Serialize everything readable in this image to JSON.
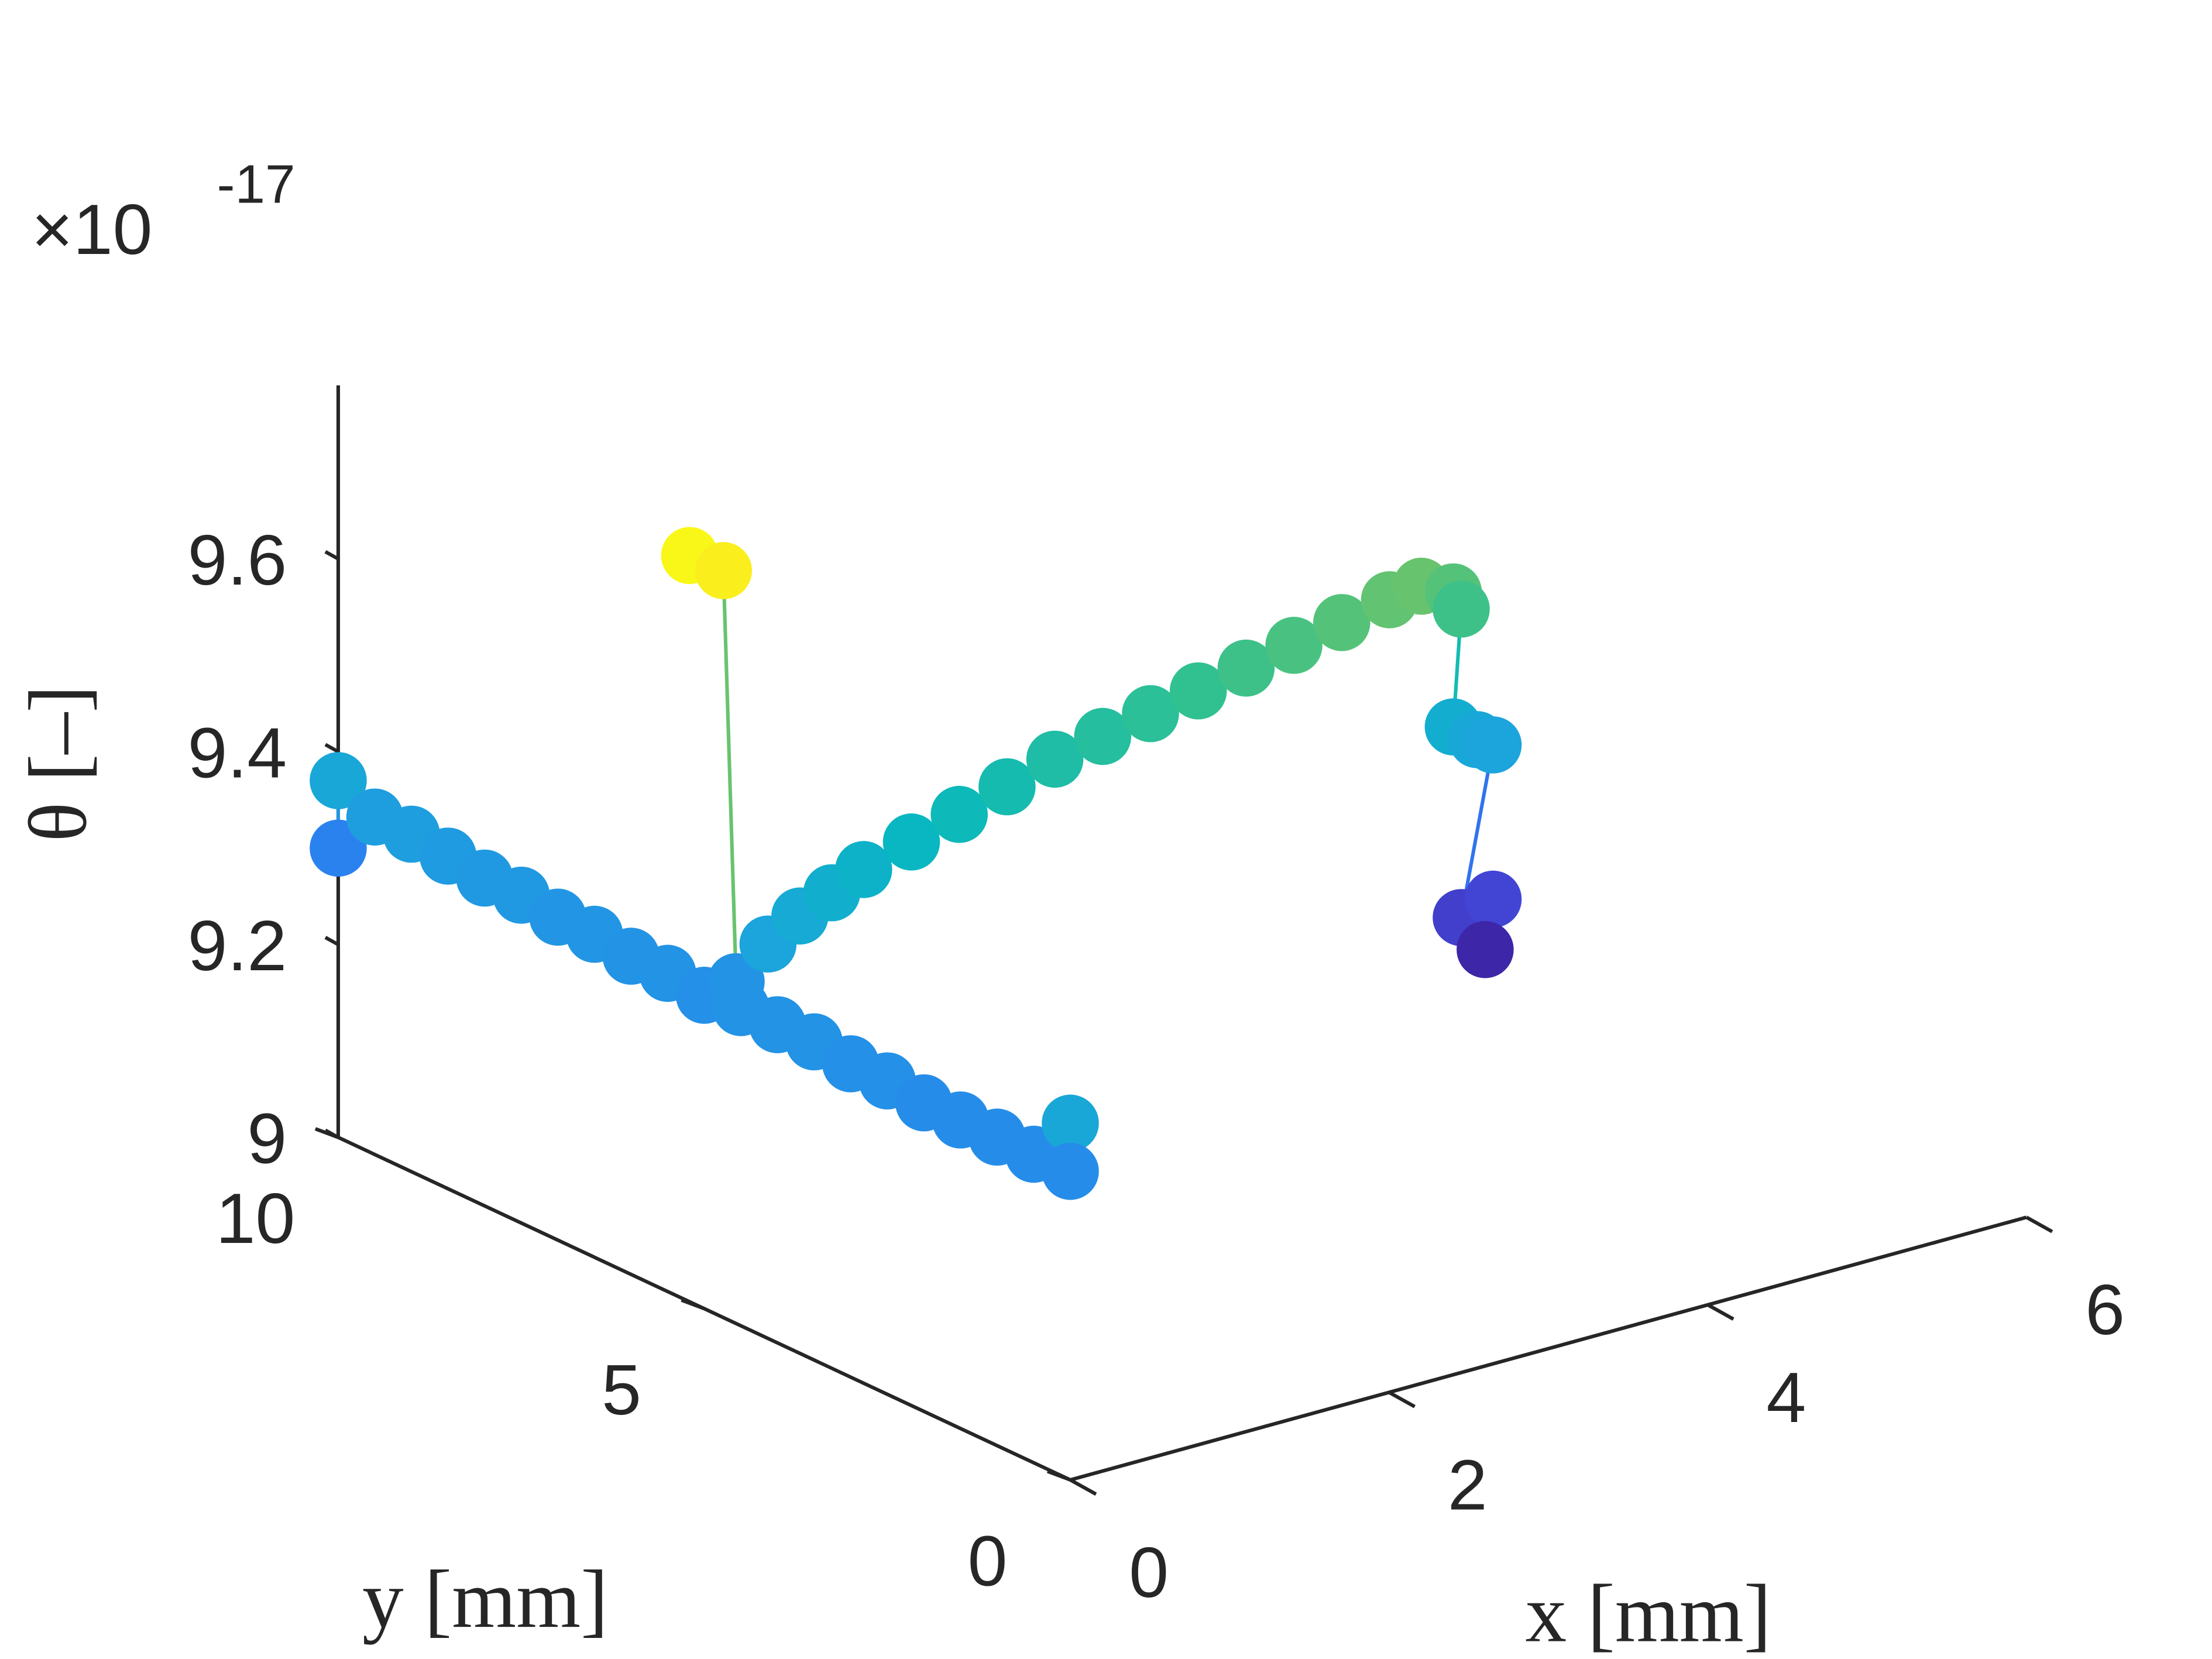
{
  "chart_data": {
    "type": "scatter3d",
    "x_label": "x [mm]",
    "y_label": "y [mm]",
    "z_label": "θ [–]",
    "z_exponent": {
      "base": "×10",
      "power": "-17"
    },
    "xlim": [
      0,
      6
    ],
    "xticks": [
      0,
      2,
      4,
      6
    ],
    "ylim": [
      0,
      10
    ],
    "yticks": [
      0,
      5,
      10
    ],
    "zlim": [
      9,
      9.78
    ],
    "zticks": [
      9,
      9.2,
      9.4,
      9.6
    ],
    "clim": [
      9.15,
      9.78
    ],
    "colormap": [
      "#3e26a8",
      "#4352e5",
      "#2c7cf2",
      "#1ca4dc",
      "#07b8c0",
      "#31c191",
      "#86c45a",
      "#d6ba3b",
      "#fcd12c",
      "#f9fb15"
    ],
    "series": [
      {
        "x": [
          0,
          0,
          0,
          0,
          0,
          0,
          0,
          0,
          0,
          0,
          0,
          0,
          0,
          0,
          0,
          0,
          0,
          0,
          0,
          0,
          0,
          0,
          0
        ],
        "y": [
          10,
          10,
          9.5,
          9,
          8.5,
          8,
          7.5,
          7,
          6.5,
          6,
          5.5,
          5,
          4.5,
          4,
          3.5,
          3,
          2.5,
          2,
          1.5,
          1,
          0.5,
          0,
          0
        ],
        "z": [
          9.37,
          9.3,
          9.35,
          9.35,
          9.345,
          9.34,
          9.34,
          9.335,
          9.335,
          9.33,
          9.33,
          9.325,
          9.33,
          9.33,
          9.33,
          9.325,
          9.325,
          9.32,
          9.32,
          9.32,
          9.32,
          9.37,
          9.32
        ]
      },
      {
        "x": [
          0,
          0.12,
          0.2,
          0.4,
          0.6,
          0.8,
          1.0,
          1.3,
          1.6,
          1.9,
          2.2,
          2.5,
          2.8,
          3.1,
          3.4,
          3.7,
          4.0,
          4.3,
          4.5,
          4.7,
          4.75,
          4.7,
          4.85,
          4.95,
          4.75,
          4.95,
          4.9
        ],
        "y": [
          5.2,
          5,
          5,
          5,
          5,
          5,
          5,
          5,
          5,
          5,
          5,
          5,
          5,
          5,
          5,
          5,
          5,
          5,
          5,
          5,
          5,
          5,
          5,
          5,
          5,
          5,
          5
        ],
        "z": [
          9.774,
          9.76,
          9.33,
          9.36,
          9.38,
          9.395,
          9.41,
          9.425,
          9.44,
          9.455,
          9.47,
          9.48,
          9.49,
          9.5,
          9.51,
          9.52,
          9.53,
          9.54,
          9.545,
          9.53,
          9.51,
          9.39,
          9.37,
          9.36,
          9.19,
          9.2,
          9.15
        ]
      }
    ]
  }
}
